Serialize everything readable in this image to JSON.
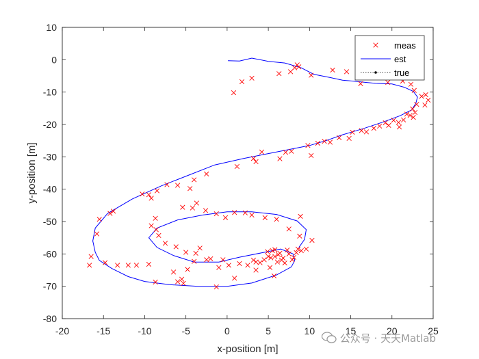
{
  "chart_data": {
    "type": "scatter",
    "title": "",
    "xlabel": "x-position [m]",
    "ylabel": "y-position [m]",
    "xlim": [
      -20,
      25
    ],
    "ylim": [
      -80,
      10
    ],
    "xticks": [
      "-20",
      "-15",
      "-10",
      "-5",
      "0",
      "5",
      "10",
      "15",
      "20",
      "25"
    ],
    "yticks": [
      "10",
      "0",
      "-10",
      "-20",
      "-30",
      "-40",
      "-50",
      "-60",
      "-70",
      "-80"
    ],
    "grid": false,
    "legend_position": "top-right",
    "legend": [
      "meas",
      "est",
      "true"
    ],
    "colors": {
      "meas": "#ff0000",
      "est": "#0000ff",
      "true": "#000000",
      "axis": "#262626"
    },
    "est_path": [
      [
        0.1,
        -0.3
      ],
      [
        1.5,
        -0.4
      ],
      [
        3,
        0.5
      ],
      [
        5,
        -0.5
      ],
      [
        7,
        -1
      ],
      [
        9,
        -2.5
      ],
      [
        10.5,
        -4.5
      ],
      [
        12.5,
        -5.5
      ],
      [
        14,
        -6.3
      ],
      [
        16,
        -6.8
      ],
      [
        18,
        -7.3
      ],
      [
        20,
        -7.5
      ],
      [
        21.5,
        -8.5
      ],
      [
        22.6,
        -9.8
      ],
      [
        23.1,
        -11.5
      ],
      [
        22.9,
        -13.5
      ],
      [
        22.4,
        -15.5
      ],
      [
        21,
        -17.3
      ],
      [
        19,
        -19.2
      ],
      [
        16.5,
        -21.3
      ],
      [
        14,
        -23.2
      ],
      [
        12,
        -25
      ],
      [
        10,
        -26.5
      ],
      [
        8,
        -27.5
      ],
      [
        5,
        -29
      ],
      [
        2,
        -30.5
      ],
      [
        -1.5,
        -32.5
      ],
      [
        -4.5,
        -35.5
      ],
      [
        -8,
        -39
      ],
      [
        -11.5,
        -43
      ],
      [
        -14.5,
        -47.5
      ],
      [
        -16,
        -52
      ],
      [
        -16.3,
        -56
      ],
      [
        -16,
        -59.5
      ],
      [
        -15.5,
        -62
      ],
      [
        -14,
        -64.5
      ],
      [
        -12,
        -67
      ],
      [
        -10,
        -68.5
      ],
      [
        -7,
        -69.5
      ],
      [
        -3.5,
        -70
      ],
      [
        0,
        -70
      ],
      [
        3,
        -69
      ],
      [
        6,
        -66.5
      ],
      [
        7.8,
        -64
      ],
      [
        8.2,
        -62
      ],
      [
        8,
        -60
      ],
      [
        6.5,
        -58.5
      ],
      [
        4.5,
        -59.5
      ],
      [
        1.5,
        -61
      ],
      [
        -1,
        -62.5
      ],
      [
        -4,
        -62.5
      ],
      [
        -6.5,
        -60.5
      ],
      [
        -8.5,
        -58
      ],
      [
        -9.5,
        -55
      ],
      [
        -8.5,
        -52
      ],
      [
        -6,
        -49.5
      ],
      [
        -3,
        -48
      ],
      [
        0,
        -47
      ],
      [
        3,
        -47
      ],
      [
        6,
        -47.8
      ],
      [
        8.5,
        -49.8
      ],
      [
        9.6,
        -52.5
      ],
      [
        9.4,
        -55.5
      ],
      [
        8.7,
        -58
      ]
    ],
    "meas_points": [
      [
        0.8,
        -10.2
      ],
      [
        1.8,
        -6.8
      ],
      [
        3,
        -5.7
      ],
      [
        6.3,
        -4.3
      ],
      [
        7.7,
        -3.7
      ],
      [
        8.2,
        -2.5
      ],
      [
        8.5,
        -1.6
      ],
      [
        8.7,
        -2.2
      ],
      [
        10.2,
        -4.8
      ],
      [
        12.8,
        -3.2
      ],
      [
        14.5,
        -3.7
      ],
      [
        16.2,
        -7.4
      ],
      [
        19.5,
        -7
      ],
      [
        21.3,
        -6.6
      ],
      [
        22.3,
        -7.6
      ],
      [
        22.7,
        -9.5
      ],
      [
        23.6,
        -11.3
      ],
      [
        24.1,
        -10.8
      ],
      [
        24.4,
        -12.5
      ],
      [
        24,
        -14
      ],
      [
        23,
        -13.8
      ],
      [
        22.5,
        -15.2
      ],
      [
        22.8,
        -16.3
      ],
      [
        22.2,
        -17.2
      ],
      [
        21.8,
        -16.8
      ],
      [
        22.6,
        -17.8
      ],
      [
        21.4,
        -18.6
      ],
      [
        20.8,
        -19.4
      ],
      [
        20.2,
        -18.7
      ],
      [
        19.6,
        -20.3
      ],
      [
        20.9,
        -20.8
      ],
      [
        19.2,
        -19.5
      ],
      [
        18.5,
        -20.5
      ],
      [
        17.8,
        -21.2
      ],
      [
        16.9,
        -22.3
      ],
      [
        16.3,
        -21.9
      ],
      [
        15.2,
        -22.4
      ],
      [
        14.8,
        -24.3
      ],
      [
        13.6,
        -24.1
      ],
      [
        12.5,
        -25.5
      ],
      [
        11.8,
        -25.2
      ],
      [
        11,
        -25.8
      ],
      [
        10.2,
        -29.6
      ],
      [
        9.8,
        -26.5
      ],
      [
        7.8,
        -28.3
      ],
      [
        7.1,
        -28.6
      ],
      [
        6.4,
        -30.6
      ],
      [
        4.2,
        -28.5
      ],
      [
        3.5,
        -31.5
      ],
      [
        3.2,
        -30.5
      ],
      [
        1.2,
        -33
      ],
      [
        -2.5,
        -35.3
      ],
      [
        -4,
        -37.1
      ],
      [
        -4.5,
        -39.8
      ],
      [
        -6,
        -38.8
      ],
      [
        -7.3,
        -38.6
      ],
      [
        -8.5,
        -40.5
      ],
      [
        -9.5,
        -41.7
      ],
      [
        -9.2,
        -42.8
      ],
      [
        -10.3,
        -41.5
      ],
      [
        -13.8,
        -46.8
      ],
      [
        -14.2,
        -47.5
      ],
      [
        -15.5,
        -49.3
      ],
      [
        -15.8,
        -53.8
      ],
      [
        -16.5,
        -60.8
      ],
      [
        -16.7,
        -63.5
      ],
      [
        -14.8,
        -62.7
      ],
      [
        -13.3,
        -63.5
      ],
      [
        -12,
        -63.5
      ],
      [
        -11,
        -63.5
      ],
      [
        -9.5,
        -63.2
      ],
      [
        -8.7,
        -68.7
      ],
      [
        -6.5,
        -65.6
      ],
      [
        -6,
        -68.6
      ],
      [
        -5.3,
        -69.1
      ],
      [
        -5.5,
        -67.8
      ],
      [
        -4.8,
        -64.8
      ],
      [
        -4,
        -62.3
      ],
      [
        -3.3,
        -58.2
      ],
      [
        -2.5,
        -61.8
      ],
      [
        -1.3,
        -70.2
      ],
      [
        -1,
        -64.2
      ],
      [
        0.2,
        -63.5
      ],
      [
        0.9,
        -67.5
      ],
      [
        1.5,
        -63
      ],
      [
        2.5,
        -63.5
      ],
      [
        3.2,
        -61.9
      ],
      [
        3.5,
        -62.5
      ],
      [
        4,
        -62.7
      ],
      [
        4.5,
        -61.8
      ],
      [
        5,
        -60.8
      ],
      [
        5.5,
        -59
      ],
      [
        5.8,
        -58.7
      ],
      [
        6.2,
        -60.2
      ],
      [
        6.8,
        -61.3
      ],
      [
        7.5,
        -60
      ],
      [
        8.1,
        -61.1
      ],
      [
        8.4,
        -59.6
      ],
      [
        9,
        -59
      ],
      [
        9.6,
        -58.5
      ],
      [
        10.3,
        -55.8
      ],
      [
        8.8,
        -54.5
      ],
      [
        7.5,
        -52.3
      ],
      [
        6,
        -49.3
      ],
      [
        5.7,
        -66.8
      ],
      [
        3.5,
        -65
      ],
      [
        5.2,
        -64.2
      ],
      [
        -0.5,
        -61.8
      ],
      [
        -2,
        -61.5
      ],
      [
        -3.8,
        -59.8
      ],
      [
        -5,
        -59.5
      ],
      [
        -6.2,
        -57.8
      ],
      [
        -7.5,
        -56.7
      ],
      [
        -8.3,
        -54.3
      ],
      [
        -8.6,
        -52.5
      ],
      [
        -9.2,
        -51.3
      ],
      [
        -8.7,
        -49
      ],
      [
        -5.4,
        -45.6
      ],
      [
        -4.2,
        -45.8
      ],
      [
        -3.7,
        -44.3
      ],
      [
        -2.6,
        -46.6
      ],
      [
        -1.3,
        -47.6
      ],
      [
        0.9,
        -47.2
      ],
      [
        2.2,
        -47.3
      ],
      [
        3,
        -48
      ],
      [
        4.6,
        -48.8
      ],
      [
        8.9,
        -48.4
      ],
      [
        -0.2,
        -48.8
      ],
      [
        5.3,
        -61.2
      ],
      [
        6.1,
        -62.5
      ],
      [
        7,
        -62.8
      ],
      [
        7.9,
        -61.8
      ],
      [
        4.9,
        -59.3
      ],
      [
        5.8,
        -60.8
      ],
      [
        6.6,
        -61.9
      ],
      [
        6.4,
        -59.8
      ],
      [
        7.3,
        -58.8
      ],
      [
        8.6,
        -58.5
      ]
    ]
  }
}
